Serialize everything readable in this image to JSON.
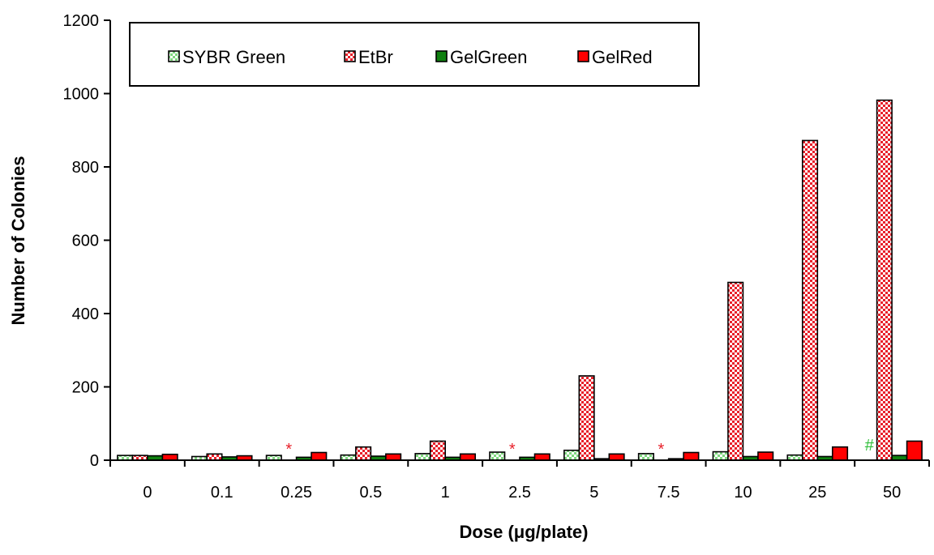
{
  "chart_data": {
    "type": "bar",
    "title": "",
    "xlabel": "Dose (μg/plate)",
    "ylabel": "Number of Colonies",
    "ylim": [
      0,
      1200
    ],
    "yticks": [
      0,
      200,
      400,
      600,
      800,
      1000,
      1200
    ],
    "ytick_labels": [
      "0",
      "200",
      "400",
      "600",
      "800",
      "1000",
      "1200"
    ],
    "grid": false,
    "legend_position": "top",
    "categories": [
      "0",
      "0.1",
      "0.25",
      "0.5",
      "1",
      "2.5",
      "5",
      "7.5",
      "10",
      "25",
      "50"
    ],
    "series": [
      {
        "name": "SYBR Green",
        "fill": "#7ed67e",
        "pattern": "checker",
        "values": [
          13,
          10,
          13,
          14,
          18,
          22,
          27,
          18,
          23,
          14,
          null
        ]
      },
      {
        "name": "EtBr",
        "fill": "#e8202a",
        "pattern": "checker",
        "values": [
          13,
          17,
          null,
          36,
          52,
          null,
          230,
          null,
          485,
          872,
          982
        ]
      },
      {
        "name": "GelGreen",
        "fill": "#108010",
        "pattern": "solid",
        "values": [
          12,
          9,
          8,
          11,
          8,
          8,
          4,
          4,
          10,
          10,
          13
        ]
      },
      {
        "name": "GelRed",
        "fill": "#ff0000",
        "pattern": "solid",
        "values": [
          16,
          12,
          21,
          17,
          17,
          17,
          17,
          21,
          22,
          36,
          52
        ]
      }
    ],
    "annotations": [
      {
        "text": "*",
        "category": "0.25",
        "series": "EtBr",
        "color": "#e8202a"
      },
      {
        "text": "*",
        "category": "2.5",
        "series": "EtBr",
        "color": "#e8202a"
      },
      {
        "text": "*",
        "category": "7.5",
        "series": "EtBr",
        "color": "#e8202a"
      },
      {
        "text": "#",
        "category": "50",
        "series": "SYBR Green",
        "color": "#2fbf3a"
      }
    ]
  }
}
